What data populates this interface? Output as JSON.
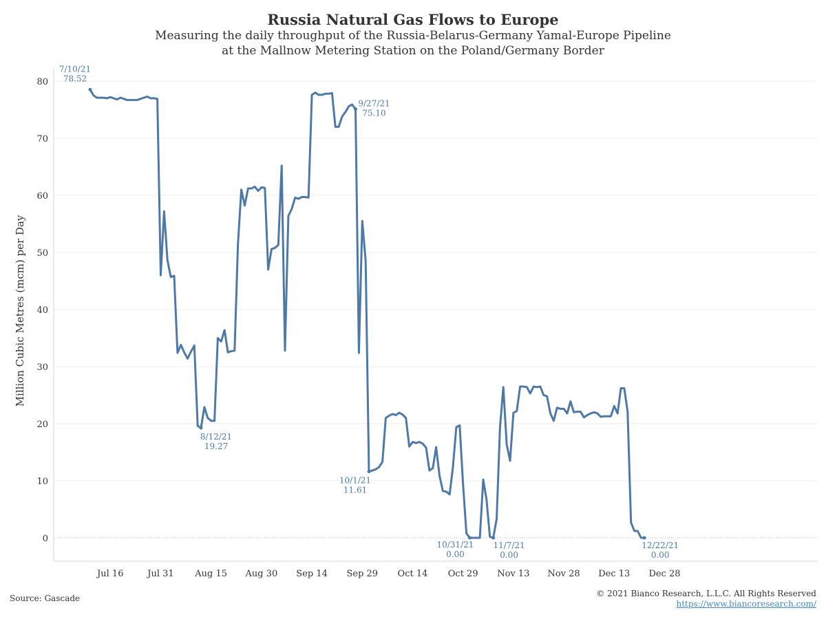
{
  "chart_data": {
    "type": "line",
    "title": "Russia Natural Gas Flows to Europe",
    "subtitle_line1": "Measuring the daily throughput of the Russia-Belarus-Germany Yamal-Europe Pipeline",
    "subtitle_line2": "at the Mallnow Metering Station on the Poland/Germany Border",
    "ylabel": "Million Cubic Metres (mcm) per Day",
    "xlabel": "",
    "ylim": [
      0,
      80
    ],
    "yticks": [
      0,
      10,
      20,
      30,
      40,
      50,
      60,
      70,
      80
    ],
    "x_start_date": "2021-07-10",
    "x_end_date": "2021-12-29",
    "x_ticks": [
      {
        "day": 6,
        "label": "Jul 16"
      },
      {
        "day": 21,
        "label": "Jul 31"
      },
      {
        "day": 36,
        "label": "Aug 15"
      },
      {
        "day": 51,
        "label": "Aug 30"
      },
      {
        "day": 66,
        "label": "Sep 14"
      },
      {
        "day": 81,
        "label": "Sep 29"
      },
      {
        "day": 96,
        "label": "Oct 14"
      },
      {
        "day": 111,
        "label": "Oct 29"
      },
      {
        "day": 126,
        "label": "Nov 13"
      },
      {
        "day": 141,
        "label": "Nov 28"
      },
      {
        "day": 156,
        "label": "Dec 13"
      },
      {
        "day": 171,
        "label": "Dec 28"
      }
    ],
    "series": [
      {
        "name": "Yamal-Europe Pipeline flow at Mallnow",
        "color": "#4e79a7",
        "values": [
          78.52,
          77.5,
          77.1,
          77.1,
          77.1,
          77.0,
          77.2,
          77.0,
          76.8,
          77.1,
          76.9,
          76.7,
          76.7,
          76.7,
          76.7,
          76.9,
          77.1,
          77.3,
          77.0,
          77.0,
          76.9,
          46.0,
          57.2,
          48.7,
          45.7,
          45.9,
          32.4,
          33.8,
          32.5,
          31.4,
          32.6,
          33.7,
          19.6,
          19.27,
          22.9,
          21.0,
          20.5,
          20.5,
          35.0,
          34.4,
          36.4,
          32.5,
          32.7,
          32.8,
          51.5,
          61.0,
          58.2,
          61.2,
          61.2,
          61.5,
          60.8,
          61.4,
          61.3,
          47.0,
          50.6,
          50.8,
          51.3,
          65.2,
          32.8,
          56.4,
          57.6,
          59.6,
          59.4,
          59.7,
          59.7,
          59.6,
          77.6,
          78.0,
          77.6,
          77.6,
          77.8,
          77.8,
          77.9,
          72.0,
          72.0,
          73.8,
          74.6,
          75.6,
          75.9,
          75.1,
          32.4,
          55.5,
          48.5,
          11.61,
          11.8,
          12.0,
          12.4,
          13.3,
          21.0,
          21.4,
          21.7,
          21.5,
          21.9,
          21.6,
          21.0,
          16.0,
          16.8,
          16.6,
          16.8,
          16.5,
          15.8,
          11.8,
          12.2,
          15.9,
          10.9,
          8.2,
          8.1,
          7.6,
          12.4,
          19.4,
          19.7,
          9.4,
          0.8,
          0.0,
          0.0,
          0.0,
          0.0,
          10.2,
          6.7,
          0.2,
          0.0,
          3.3,
          19.4,
          26.4,
          16.4,
          13.5,
          21.9,
          22.2,
          26.5,
          26.5,
          26.4,
          25.3,
          26.5,
          26.4,
          26.5,
          25.0,
          24.8,
          21.8,
          20.5,
          22.8,
          22.6,
          22.6,
          21.8,
          23.9,
          22.0,
          22.1,
          22.1,
          21.1,
          21.5,
          21.8,
          22.0,
          21.8,
          21.2,
          21.3,
          21.3,
          21.3,
          23.1,
          21.8,
          26.2,
          26.2,
          22.1,
          2.7,
          1.2,
          1.2,
          0.0,
          0.0
        ]
      }
    ],
    "annotations": [
      {
        "day": 0,
        "value": 78.52,
        "date_label": "7/10/21",
        "value_label": "78.52",
        "align": "middle",
        "offset": "above"
      },
      {
        "day": 33,
        "value": 19.27,
        "date_label": "8/12/21",
        "value_label": "19.27",
        "align": "middle",
        "offset": "below"
      },
      {
        "day": 79,
        "value": 75.1,
        "date_label": "9/27/21",
        "value_label": "75.10",
        "align": "middle",
        "offset": "right"
      },
      {
        "day": 83,
        "value": 11.61,
        "date_label": "10/1/21",
        "value_label": "11.61",
        "align": "middle",
        "offset": "below-left"
      },
      {
        "day": 113,
        "value": 0.0,
        "date_label": "10/31/21",
        "value_label": "0.00",
        "align": "middle",
        "offset": "below-left"
      },
      {
        "day": 120,
        "value": 0.0,
        "date_label": "11/7/21",
        "value_label": "0.00",
        "align": "middle",
        "offset": "below-right"
      },
      {
        "day": 165,
        "value": 0.0,
        "date_label": "12/22/21",
        "value_label": "0.00",
        "align": "middle",
        "offset": "below-right"
      }
    ]
  },
  "footer": {
    "source": "Source: Gascade",
    "copyright": "© 2021 Bianco Research, L.L.C. All Rights Reserved",
    "url": "https://www.biancoresearch.com/"
  }
}
